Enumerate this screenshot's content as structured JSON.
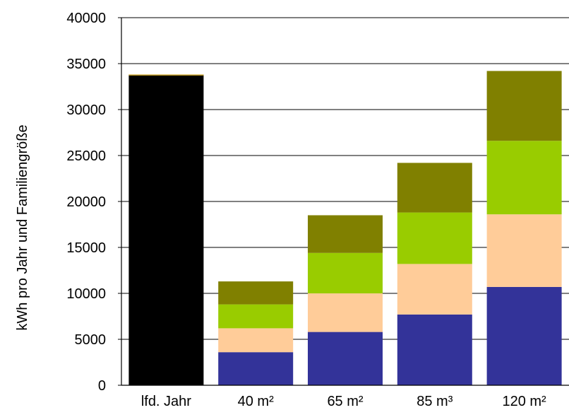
{
  "chart_data": {
    "type": "bar",
    "stacked": true,
    "title": "",
    "xlabel": "",
    "ylabel": "kWh pro Jahr und Familiengröße",
    "ylim": [
      0,
      40000
    ],
    "yticks": [
      0,
      5000,
      10000,
      15000,
      20000,
      25000,
      30000,
      35000,
      40000
    ],
    "grid": "horizontal",
    "legend": "none",
    "categories": [
      "lfd. Jahr",
      "40 m²",
      "65 m²",
      "85 m³",
      "120 m²"
    ],
    "series": [
      {
        "color": "#000000",
        "values": [
          33800,
          0,
          0,
          0,
          0
        ]
      },
      {
        "color": "#333399",
        "values": [
          0,
          3600,
          5800,
          7700,
          10700
        ]
      },
      {
        "color": "#ffcc99",
        "values": [
          0,
          2600,
          4200,
          5500,
          7900
        ]
      },
      {
        "color": "#99cc00",
        "values": [
          0,
          2600,
          4400,
          5600,
          8000
        ]
      },
      {
        "color": "#808000",
        "values": [
          0,
          2500,
          4100,
          5400,
          7600
        ]
      }
    ]
  }
}
